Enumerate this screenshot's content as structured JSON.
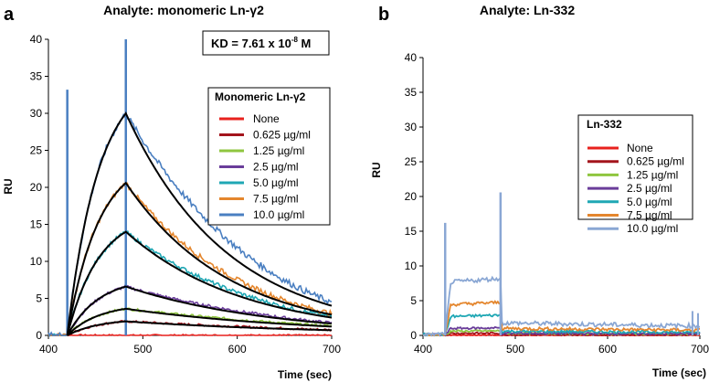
{
  "chart_data": [
    {
      "type": "line",
      "panel": "a",
      "title": "Analyte: monomeric Ln-γ2",
      "xlabel": "Time (sec)",
      "ylabel": "RU",
      "xlim": [
        400,
        700
      ],
      "ylim": [
        0,
        40
      ],
      "xticks": [
        400,
        500,
        600,
        700
      ],
      "yticks": [
        0,
        5,
        10,
        15,
        20,
        25,
        30,
        35,
        40
      ],
      "annotation": {
        "prefix": "KD = 7.61 x 10",
        "exponent": "-8",
        "suffix": " M"
      },
      "legend_title": "Monomeric Ln-γ2",
      "injection_start": 420,
      "injection_end": 482,
      "series": [
        {
          "name": "None",
          "color": "#e8211d",
          "association_peak": 0.0,
          "dissociation_end": 0.0
        },
        {
          "name": "0.625 µg/ml",
          "color": "#a3141c",
          "association_peak": 1.9,
          "dissociation_end": 0.7
        },
        {
          "name": "1.25 µg/ml",
          "color": "#8fc63f",
          "association_peak": 3.6,
          "dissociation_end": 1.2
        },
        {
          "name": "2.5 µg/ml",
          "color": "#6a3d9a",
          "association_peak": 6.6,
          "dissociation_end": 1.6
        },
        {
          "name": "5.0 µg/ml",
          "color": "#1fa7b4",
          "association_peak": 14.0,
          "dissociation_end": 2.4
        },
        {
          "name": "7.5 µg/ml",
          "color": "#e4862d",
          "association_peak": 20.6,
          "dissociation_end": 2.8
        },
        {
          "name": "10.0 µg/ml",
          "color": "#4a7fc1",
          "association_peak": 30.0,
          "dissociation_end": 4.0
        }
      ],
      "fit_color": "#000000"
    },
    {
      "type": "line",
      "panel": "b",
      "title": "Analyte: Ln-332",
      "xlabel": "Time (sec)",
      "ylabel": "RU",
      "xlim": [
        400,
        700
      ],
      "ylim": [
        0,
        40
      ],
      "xticks": [
        400,
        500,
        600,
        700
      ],
      "yticks": [
        0,
        5,
        10,
        15,
        20,
        25,
        30,
        35,
        40
      ],
      "legend_title": "Ln-332",
      "injection_start": 424,
      "injection_end": 484,
      "series": [
        {
          "name": "None",
          "color": "#e8211d",
          "association_level": 0.0,
          "dissociation_level": 0.0
        },
        {
          "name": "0.625 µg/ml",
          "color": "#a3141c",
          "association_level": 0.3,
          "dissociation_level": 0.1
        },
        {
          "name": "1.25 µg/ml",
          "color": "#8fc63f",
          "association_level": 0.6,
          "dissociation_level": 0.3
        },
        {
          "name": "2.5 µg/ml",
          "color": "#6a3d9a",
          "association_level": 1.0,
          "dissociation_level": 0.3
        },
        {
          "name": "5.0 µg/ml",
          "color": "#1fa7b4",
          "association_level": 2.7,
          "dissociation_level": 0.6
        },
        {
          "name": "7.5 µg/ml",
          "color": "#e4862d",
          "association_level": 4.4,
          "dissociation_level": 1.0
        },
        {
          "name": "10.0 µg/ml",
          "color": "#8aa7d4",
          "association_level": 7.6,
          "dissociation_level": 1.8
        }
      ]
    }
  ]
}
